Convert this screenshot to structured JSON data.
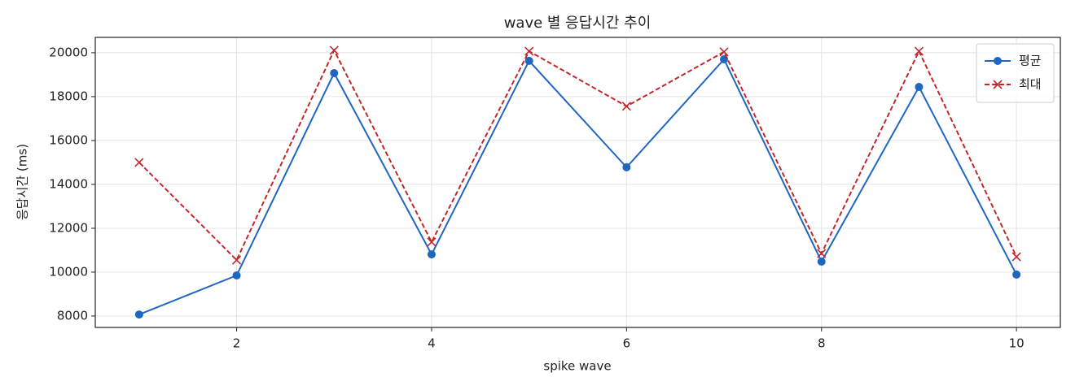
{
  "chart_data": {
    "type": "line",
    "title": "wave 별 응답시간 추이",
    "x_label": "spike wave",
    "y_label": "응답시간 (ms)",
    "x": [
      1,
      2,
      3,
      4,
      5,
      6,
      7,
      8,
      9,
      10
    ],
    "series": [
      {
        "name": "평균",
        "color": "#1f66c1",
        "marker": "circle",
        "dashed": false,
        "values": [
          8070,
          9850,
          19070,
          10810,
          19630,
          14780,
          19700,
          10480,
          18440,
          9890
        ]
      },
      {
        "name": "최대",
        "color": "#c1282d",
        "marker": "x",
        "dashed": true,
        "values": [
          15000,
          10550,
          20110,
          11370,
          20070,
          17560,
          20040,
          10850,
          20070,
          10700
        ]
      }
    ],
    "xlim": [
      0.55,
      10.45
    ],
    "xticks": [
      2,
      4,
      6,
      8,
      10
    ],
    "ylim": [
      7480,
      20700
    ],
    "yticks": [
      8000,
      10000,
      12000,
      14000,
      16000,
      18000,
      20000
    ],
    "grid": true,
    "legend": "upper right"
  }
}
